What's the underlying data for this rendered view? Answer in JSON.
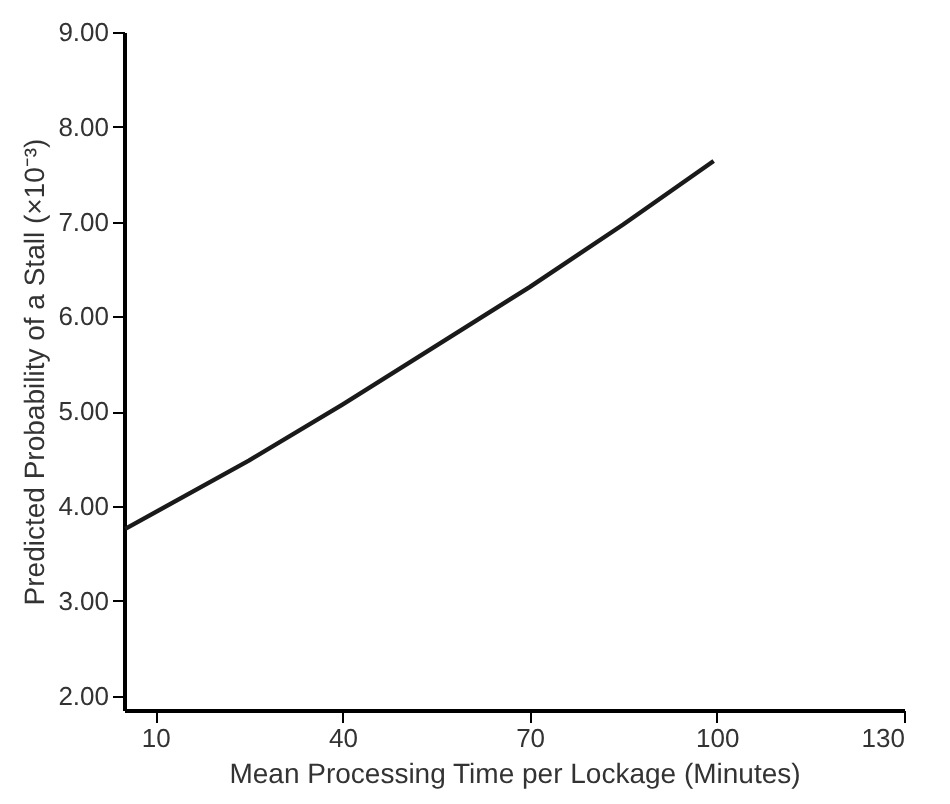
{
  "chart_data": {
    "type": "line",
    "xlabel": "Mean Processing Time per Lockage (Minutes)",
    "ylabel": "Predicted Probability of a Stall (×10⁻³)",
    "x": [
      5.2,
      25,
      40,
      55,
      70,
      85,
      99.5
    ],
    "series": [
      {
        "color": "#1a1a1a",
        "values": [
          3.76,
          4.48,
          5.07,
          5.69,
          6.31,
          6.97,
          7.64
        ]
      }
    ],
    "xlim": [
      5,
      130
    ],
    "xticks": [
      10,
      40,
      70,
      100,
      130
    ],
    "ylim": [
      1.85,
      9
    ],
    "yticks": [
      {
        "value": 2,
        "label": "2.00"
      },
      {
        "value": 3,
        "label": "3.00"
      },
      {
        "value": 4,
        "label": "4.00"
      },
      {
        "value": 5,
        "label": "5.00"
      },
      {
        "value": 6,
        "label": "6.00"
      },
      {
        "value": 7,
        "label": "7.00"
      },
      {
        "value": 8,
        "label": "8.00"
      },
      {
        "value": 9,
        "label": "9.00"
      }
    ],
    "grid": false,
    "marker": "none",
    "line_style": "solid"
  }
}
